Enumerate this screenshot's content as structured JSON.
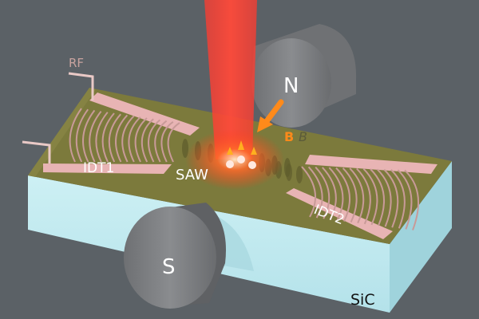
{
  "labels": {
    "rf": "RF",
    "idt1": "IDT1",
    "idt2": "IDT2",
    "saw": "SAW",
    "north": "N",
    "south": "S",
    "b_field": "B",
    "b_field_italic": "B",
    "substrate": "SiC"
  },
  "colors": {
    "background": "#5b6166",
    "substrate_side": "#bfeaf0",
    "substrate_top": "#7c7a3c",
    "electrode": "#e8b4b4",
    "laser": "#ff3b30",
    "magnet": "#7d7f82",
    "arrow": "#ff8a1a"
  }
}
